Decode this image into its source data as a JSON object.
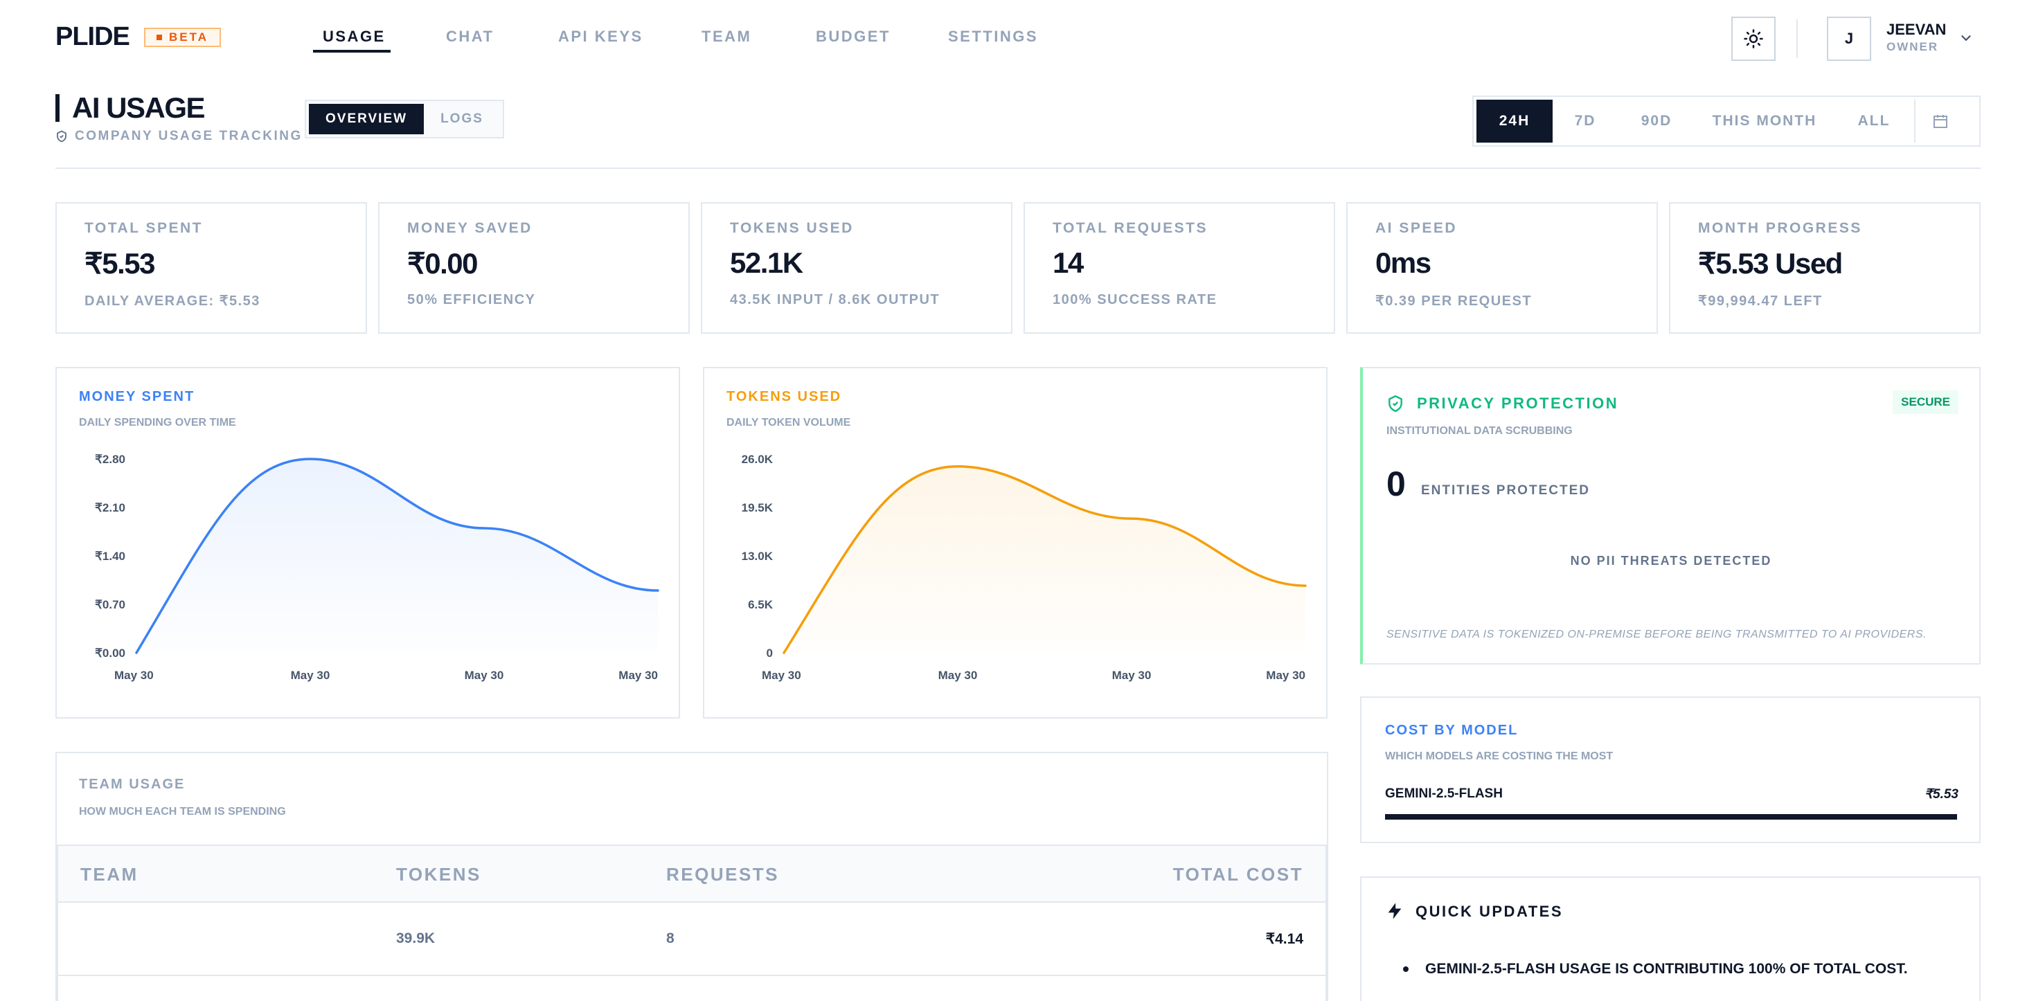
{
  "header": {
    "brand": "PLIDE",
    "beta": "BETA",
    "nav": [
      "USAGE",
      "CHAT",
      "API KEYS",
      "TEAM",
      "BUDGET",
      "SETTINGS"
    ],
    "user": {
      "initial": "J",
      "name": "JEEVAN",
      "role": "OWNER"
    }
  },
  "page": {
    "title": "AI USAGE",
    "subtitle": "COMPANY USAGE TRACKING",
    "view_tabs": [
      "OVERVIEW",
      "LOGS"
    ],
    "ranges": [
      "24H",
      "7D",
      "90D",
      "THIS MONTH",
      "ALL"
    ]
  },
  "stats": [
    {
      "label": "TOTAL SPENT",
      "value": "₹5.53",
      "sub": "DAILY AVERAGE: ₹5.53"
    },
    {
      "label": "MONEY SAVED",
      "value": "₹0.00",
      "sub": "50% EFFICIENCY"
    },
    {
      "label": "TOKENS USED",
      "value": "52.1K",
      "sub": "43.5K INPUT / 8.6K OUTPUT"
    },
    {
      "label": "TOTAL REQUESTS",
      "value": "14",
      "sub": "100% SUCCESS RATE"
    },
    {
      "label": "AI SPEED",
      "value": "0ms",
      "sub": "₹0.39 PER REQUEST"
    },
    {
      "label": "MONTH PROGRESS",
      "value": "₹5.53 Used",
      "sub": "₹99,994.47 LEFT"
    }
  ],
  "chart_data": [
    {
      "type": "area",
      "title": "MONEY SPENT",
      "subtitle": "DAILY SPENDING OVER TIME",
      "color": "#3b82f6",
      "x_ticks": [
        "May 30",
        "May 30",
        "May 30",
        "May 30"
      ],
      "y_ticks": [
        "₹0.00",
        "₹0.70",
        "₹1.40",
        "₹2.10",
        "₹2.80"
      ],
      "ylim": [
        0,
        2.8
      ],
      "values": [
        0,
        2.8,
        1.8,
        0.9
      ]
    },
    {
      "type": "area",
      "title": "TOKENS USED",
      "subtitle": "DAILY TOKEN VOLUME",
      "color": "#f59e0b",
      "x_ticks": [
        "May 30",
        "May 30",
        "May 30",
        "May 30"
      ],
      "y_ticks": [
        "0",
        "6.5K",
        "13.0K",
        "19.5K",
        "26.0K"
      ],
      "ylim": [
        0,
        26000
      ],
      "values": [
        0,
        25000,
        18000,
        9000
      ]
    }
  ],
  "team": {
    "title": "TEAM USAGE",
    "subtitle": "HOW MUCH EACH TEAM IS SPENDING",
    "columns": [
      "TEAM",
      "TOKENS",
      "REQUESTS",
      "TOTAL COST"
    ],
    "rows": [
      {
        "team": "",
        "tokens": "39.9K",
        "requests": "8",
        "cost": "₹4.14"
      }
    ]
  },
  "privacy": {
    "title": "PRIVACY PROTECTION",
    "badge": "SECURE",
    "subtitle": "INSTITUTIONAL DATA SCRUBBING",
    "entities": "0",
    "entities_label": "ENTITIES PROTECTED",
    "status": "NO PII THREATS DETECTED",
    "note": "SENSITIVE DATA IS TOKENIZED ON-PREMISE BEFORE BEING TRANSMITTED TO AI PROVIDERS."
  },
  "cost_by_model": {
    "title": "COST BY MODEL",
    "subtitle": "WHICH MODELS ARE COSTING THE MOST",
    "items": [
      {
        "model": "GEMINI-2.5-FLASH",
        "cost": "₹5.53",
        "share": 1.0
      }
    ]
  },
  "updates": {
    "title": "QUICK UPDATES",
    "items": [
      "GEMINI-2.5-FLASH USAGE IS CONTRIBUTING 100% OF TOTAL COST."
    ]
  },
  "colors": {
    "blue": "#3b82f6",
    "orange": "#f59e0b",
    "green": "#10b981",
    "dark": "#0f172a"
  }
}
